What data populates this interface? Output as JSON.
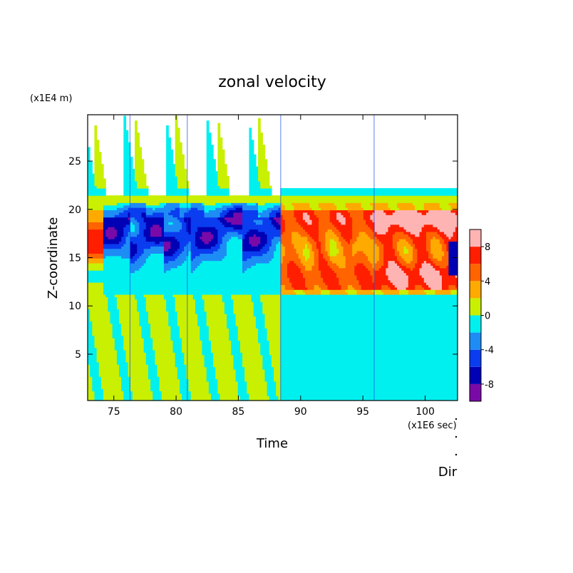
{
  "chart_data": {
    "type": "heatmap",
    "title": "zonal velocity",
    "xlabel": "Time",
    "ylabel": "Z-coordinate",
    "x_unit_label": "(x1E6 sec)",
    "y_unit_label": "(x1E4 m)",
    "footer_label": "Dir",
    "xlim": [
      72.9,
      102.6
    ],
    "ylim": [
      0.2,
      29.8
    ],
    "x_ticks": [
      75,
      80,
      85,
      90,
      95,
      100
    ],
    "y_ticks": [
      5,
      10,
      15,
      20,
      25
    ],
    "x_tick_labels": [
      "75",
      "80",
      "85",
      "90",
      "95",
      "100"
    ],
    "y_tick_labels": [
      "5",
      "10",
      "15",
      "20",
      "25"
    ],
    "colorbar": {
      "range": [
        -10,
        10
      ],
      "ticks": [
        -8,
        -4,
        0,
        4,
        8
      ],
      "tick_labels": [
        "-8",
        "-4",
        "0",
        "4",
        "8"
      ],
      "levels": [
        {
          "from": -10,
          "to": -8,
          "color": "#7a0aa8"
        },
        {
          "from": -8,
          "to": -6,
          "color": "#0000b4"
        },
        {
          "from": -6,
          "to": -4,
          "color": "#0a3cf0"
        },
        {
          "from": -4,
          "to": -2,
          "color": "#1e8cf5"
        },
        {
          "from": -2,
          "to": 0,
          "color": "#00f0f0"
        },
        {
          "from": 0,
          "to": 2,
          "color": "#c8f000"
        },
        {
          "from": 2,
          "to": 4,
          "color": "#ffaa00"
        },
        {
          "from": 4,
          "to": 6,
          "color": "#ff6400"
        },
        {
          "from": 6,
          "to": 8,
          "color": "#ff1e00"
        },
        {
          "from": 8,
          "to": 10,
          "color": "#ffb4b4"
        }
      ]
    },
    "field": {
      "upper_band_z": [
        11.2,
        20.6
      ],
      "negative_phase_time": [
        72.9,
        88.4
      ],
      "positive_phase_time": [
        88.4,
        102.6
      ],
      "values": [
        {
          "t": [
            72.9,
            102.6
          ],
          "z": [
            0.2,
            11.2
          ],
          "v": 0.5
        },
        {
          "t": [
            72.9,
            88.4
          ],
          "z": [
            20.6,
            29.8
          ],
          "v": -0.5
        },
        {
          "t": [
            88.4,
            102.6
          ],
          "z": [
            20.6,
            29.8
          ],
          "v": 0.5
        },
        {
          "t": [
            72.9,
            74.2
          ],
          "z": [
            11.5,
            20.3
          ],
          "v": 5.0
        },
        {
          "t": [
            74.2,
            76.0
          ],
          "z": [
            12.0,
            19.5
          ],
          "v": -6.5
        },
        {
          "t": [
            76.5,
            78.6
          ],
          "z": [
            14.0,
            19.0
          ],
          "v": -5.0
        },
        {
          "t": [
            79.2,
            81.0
          ],
          "z": [
            13.0,
            20.0
          ],
          "v": -5.5
        },
        {
          "t": [
            81.2,
            84.5
          ],
          "z": [
            13.5,
            19.0
          ],
          "v": -4.5
        },
        {
          "t": [
            85.4,
            88.4
          ],
          "z": [
            12.5,
            19.5
          ],
          "v": -5.0
        },
        {
          "t": [
            88.4,
            95.8
          ],
          "z": [
            11.8,
            20.3
          ],
          "v": 5.0
        },
        {
          "t": [
            96.0,
            102.6
          ],
          "z": [
            11.8,
            20.3
          ],
          "v": 7.0
        }
      ]
    }
  }
}
